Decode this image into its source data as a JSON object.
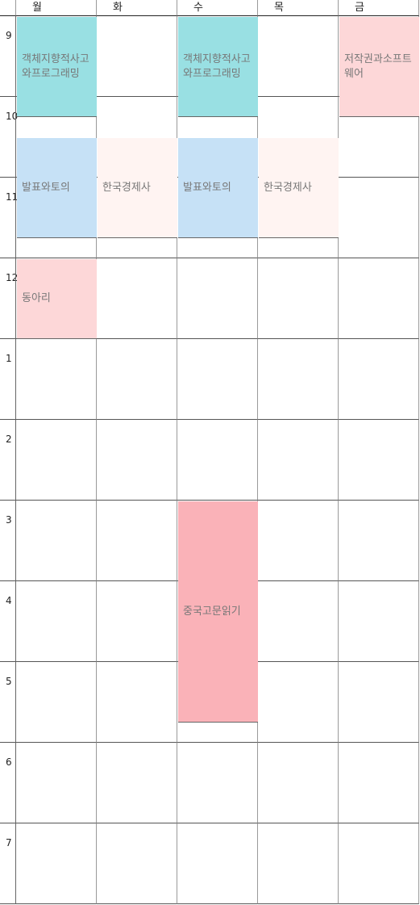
{
  "days": [
    "월",
    "화",
    "수",
    "목",
    "금"
  ],
  "hours": [
    "9",
    "10",
    "11",
    "12",
    "1",
    "2",
    "3",
    "4",
    "5",
    "6",
    "7"
  ],
  "events": [
    {
      "name": "객체지향적사고와프로그래밍",
      "day": 0,
      "start": 0,
      "end": 1.25,
      "color": "#99e0e3"
    },
    {
      "name": "객체지향적사고와프로그래밍",
      "day": 2,
      "start": 0,
      "end": 1.25,
      "color": "#99e0e3"
    },
    {
      "name": "저작권과소프트웨어",
      "day": 4,
      "start": 0,
      "end": 1.25,
      "color": "#fdd7d8"
    },
    {
      "name": "발표와토의",
      "day": 0,
      "start": 1.5,
      "end": 2.75,
      "color": "#c6e1f6"
    },
    {
      "name": "발표와토의",
      "day": 2,
      "start": 1.5,
      "end": 2.75,
      "color": "#c6e1f6"
    },
    {
      "name": "한국경제사",
      "day": 1,
      "start": 1.5,
      "end": 2.75,
      "color": "#fff4f2"
    },
    {
      "name": "한국경제사",
      "day": 3,
      "start": 1.5,
      "end": 2.75,
      "color": "#fff4f2"
    },
    {
      "name": "동아리",
      "day": 0,
      "start": 3,
      "end": 4,
      "color": "#fdd7d8"
    },
    {
      "name": "중국고문읽기",
      "day": 2,
      "start": 6,
      "end": 8.75,
      "color": "#fab2b8"
    }
  ]
}
